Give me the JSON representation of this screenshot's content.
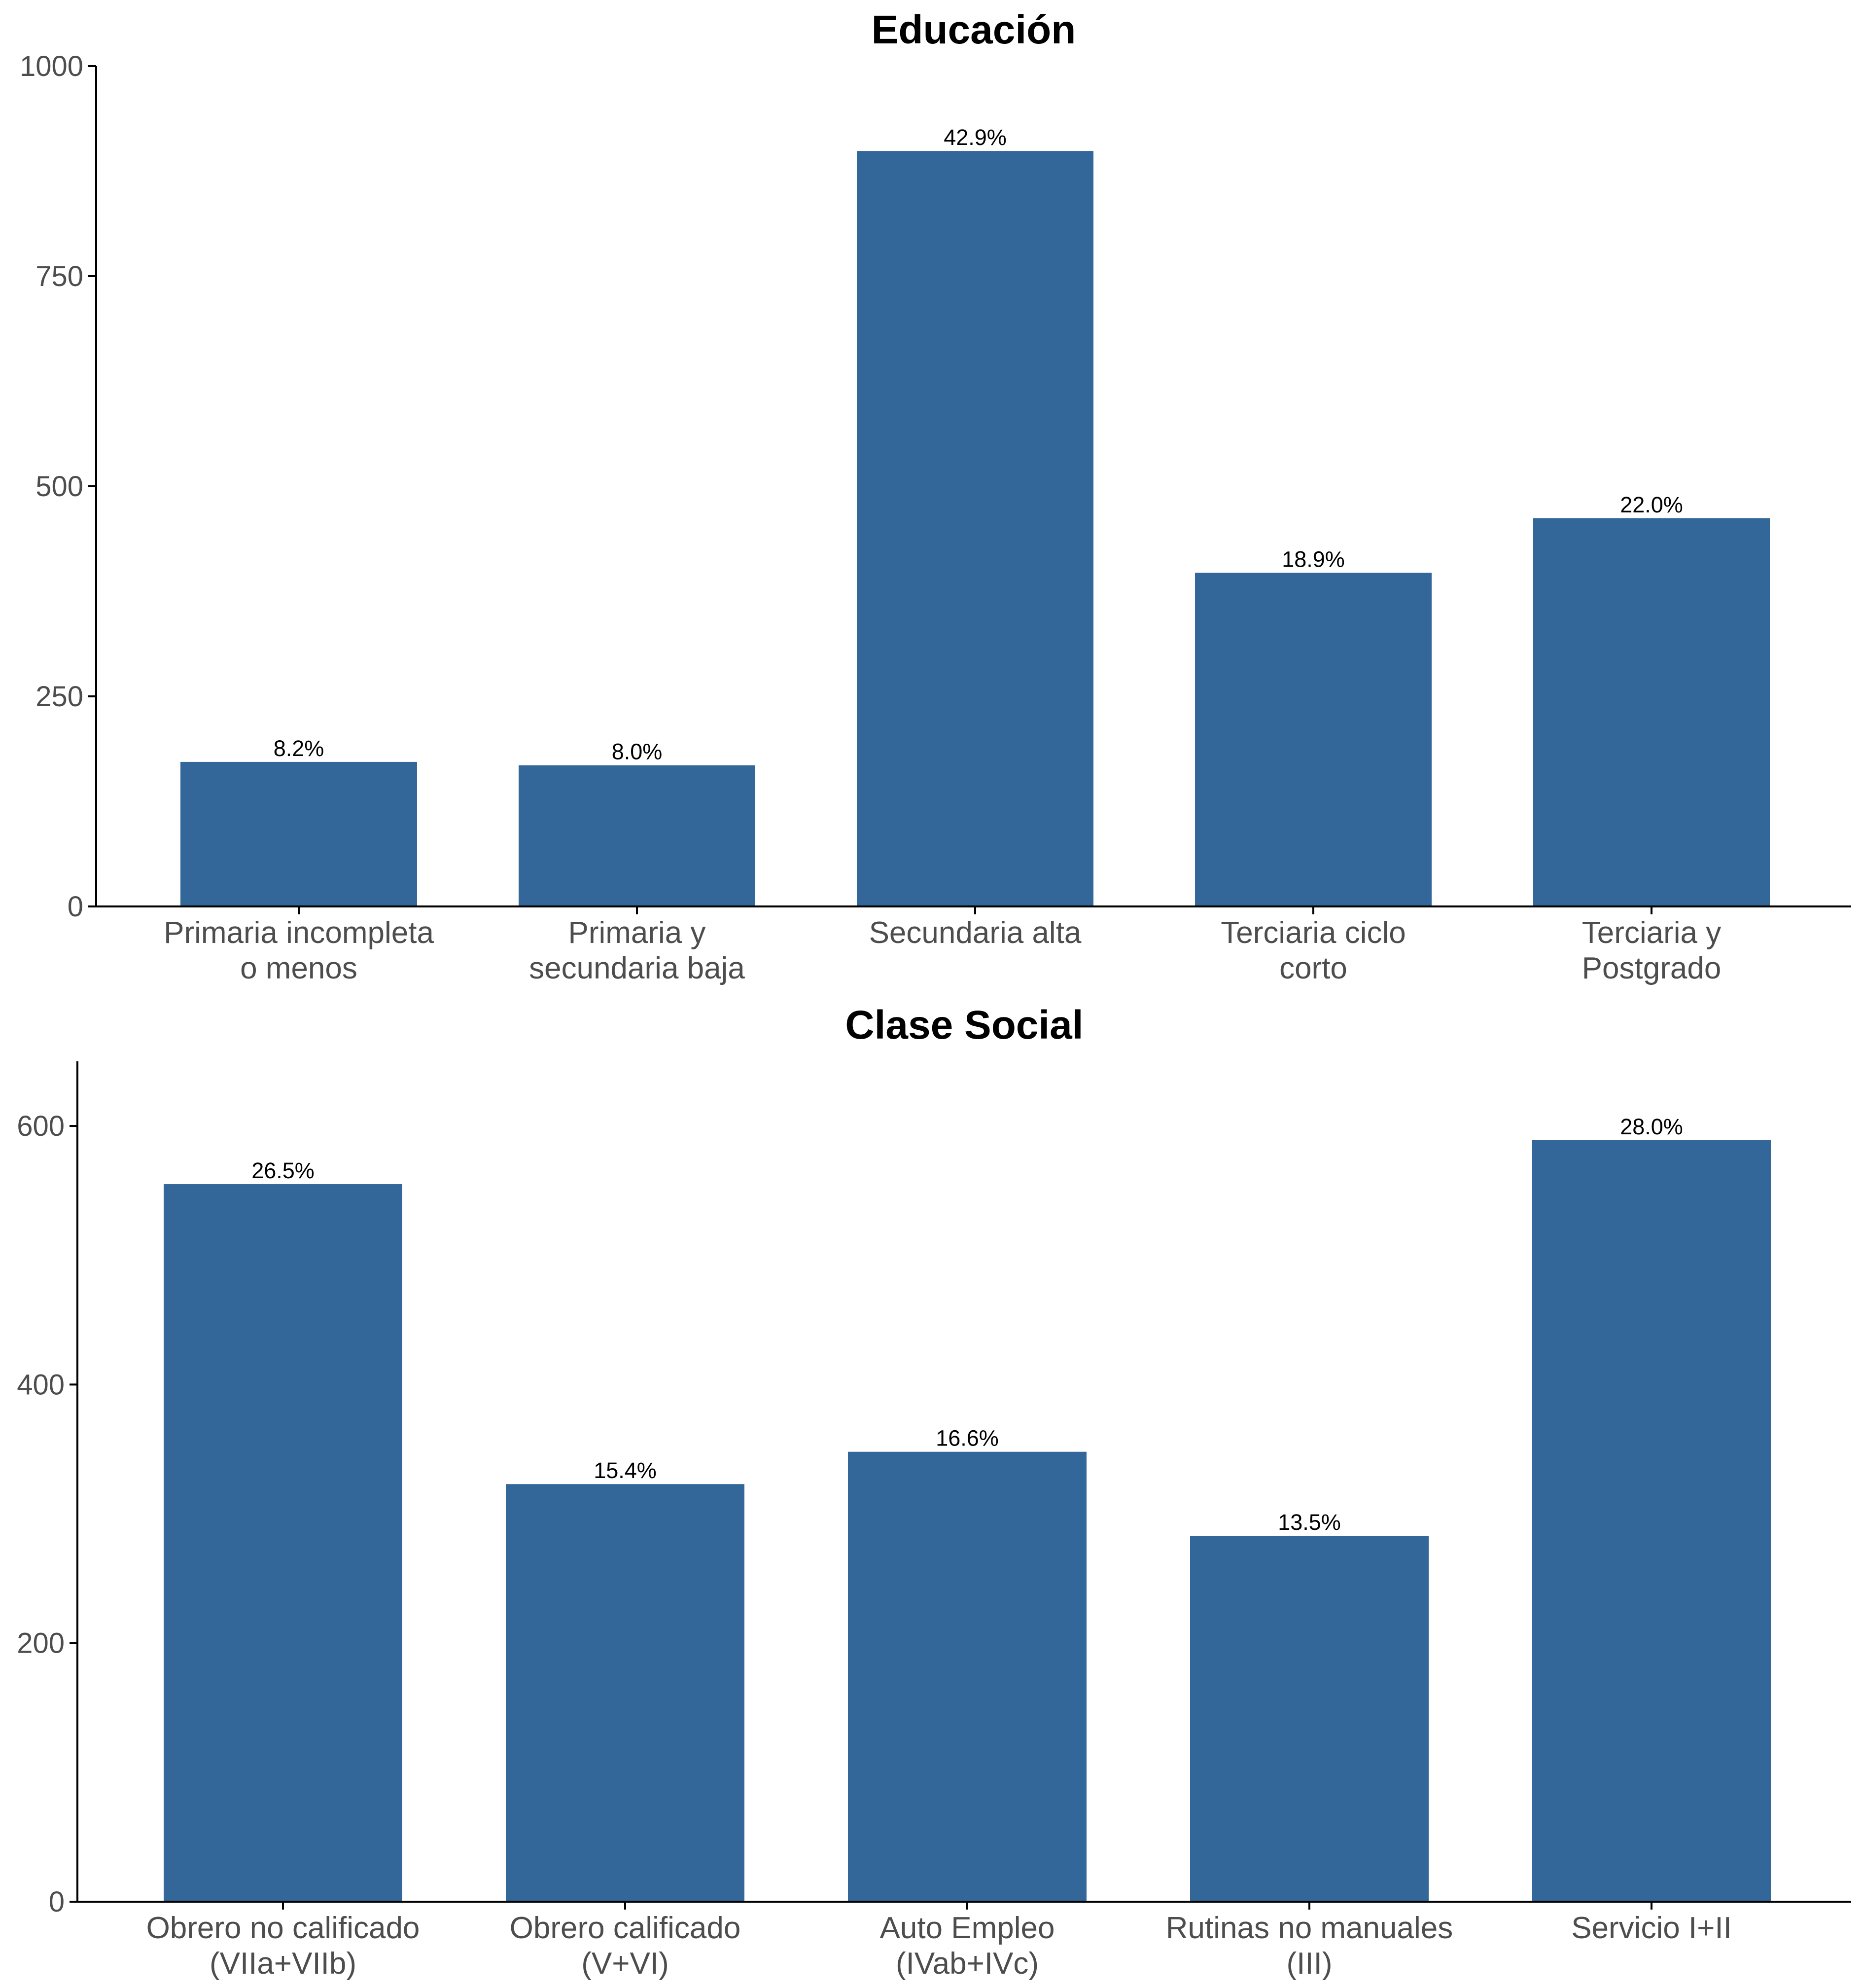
{
  "colors": {
    "bar": "#336699",
    "axis": "#000000",
    "tick_text": "#4d4d4d"
  },
  "chart_data": [
    {
      "type": "bar",
      "title": "Educación",
      "xlabel": "",
      "ylabel": "",
      "categories": [
        [
          "Primaria incompleta",
          "o menos"
        ],
        [
          "Primaria y",
          "secundaria baja"
        ],
        [
          "Secundaria alta"
        ],
        [
          "Terciaria ciclo",
          "corto"
        ],
        [
          "Terciaria y",
          "Postgrado"
        ]
      ],
      "values": [
        172,
        168,
        899,
        397,
        462
      ],
      "data_labels": [
        "8.2%",
        "8.0%",
        "42.9%",
        "18.9%",
        "22.0%"
      ],
      "ylim": [
        0,
        1000
      ],
      "yticks": [
        0,
        250,
        500,
        750,
        1000
      ],
      "grid": false,
      "legend": "none"
    },
    {
      "type": "bar",
      "title": "Clase Social",
      "xlabel": "",
      "ylabel": "",
      "categories": [
        [
          "Obrero no calificado",
          "(VIIa+VIIb)"
        ],
        [
          "Obrero calificado",
          "(V+VI)"
        ],
        [
          "Auto Empleo",
          "(IVab+IVc)"
        ],
        [
          "Rutinas no manuales",
          "(III)"
        ],
        [
          "Servicio  I+II"
        ]
      ],
      "values": [
        555,
        323,
        348,
        283,
        589
      ],
      "data_labels": [
        "26.5%",
        "15.4%",
        "16.6%",
        "13.5%",
        "28.0%"
      ],
      "ylim": [
        0,
        650
      ],
      "yticks": [
        0,
        200,
        400,
        600
      ],
      "grid": false,
      "legend": "none"
    }
  ]
}
